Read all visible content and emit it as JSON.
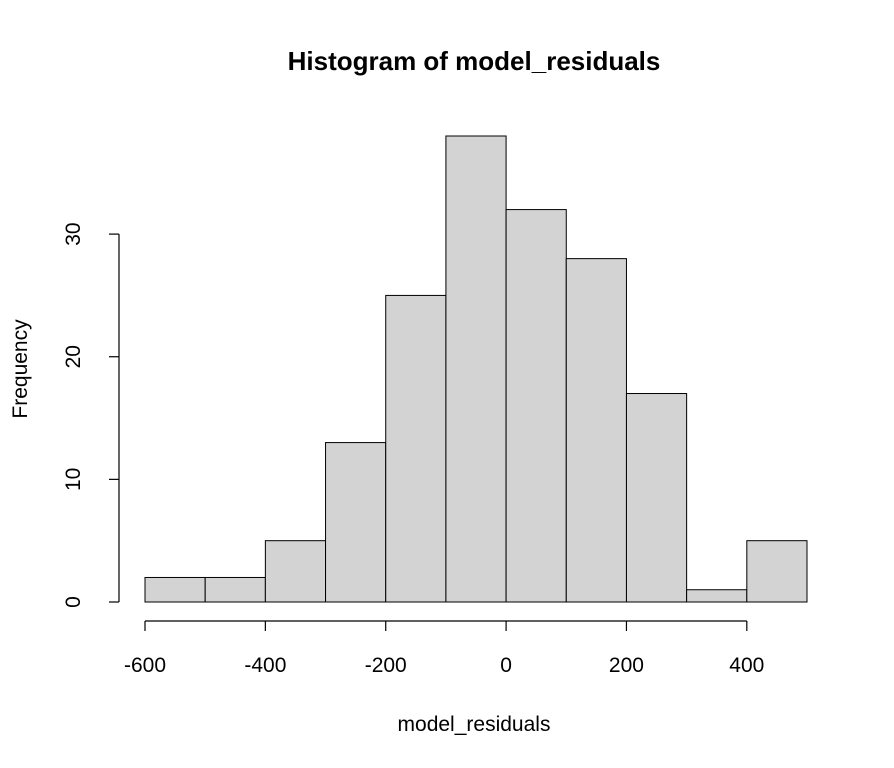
{
  "chart_data": {
    "type": "bar",
    "title": "Histogram of model_residuals",
    "xlabel": "model_residuals",
    "ylabel": "Frequency",
    "bin_edges": [
      -600,
      -500,
      -400,
      -300,
      -200,
      -100,
      0,
      100,
      200,
      300,
      400,
      500
    ],
    "values": [
      2,
      2,
      5,
      13,
      25,
      38,
      32,
      28,
      17,
      1,
      5
    ],
    "xlim": [
      -600,
      500
    ],
    "ylim": [
      0,
      38
    ],
    "x_ticks": [
      -600,
      -400,
      -200,
      0,
      200,
      400
    ],
    "x_tick_labels": [
      "-600",
      "-400",
      "-200",
      "0",
      "200",
      "400"
    ],
    "y_ticks": [
      0,
      10,
      20,
      30
    ],
    "y_tick_labels": [
      "0",
      "10",
      "20",
      "30"
    ],
    "bar_color": "#d3d3d3",
    "grid": false
  }
}
